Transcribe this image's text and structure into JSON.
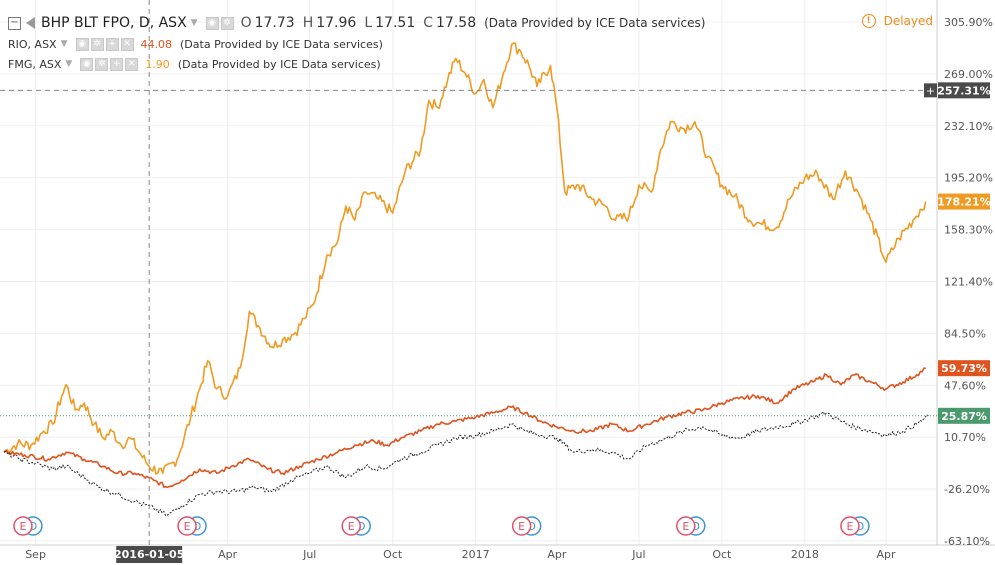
{
  "legend": {
    "main": {
      "symbol": "BHP BLT FPO, D, ASX",
      "o_label": "O",
      "o_value": "17.73",
      "h_label": "H",
      "h_value": "17.96",
      "l_label": "L",
      "l_value": "17.51",
      "c_label": "C",
      "c_value": "17.58",
      "provider": "(Data Provided by ICE Data services)"
    },
    "rio": {
      "symbol": "RIO, ASX",
      "value": "44.08",
      "provider": "(Data Provided by ICE Data services)"
    },
    "fmg": {
      "symbol": "FMG, ASX",
      "value": "1.90",
      "provider": "(Data Provided by ICE Data services)"
    }
  },
  "status": {
    "delayed_label": "Delayed"
  },
  "colors": {
    "bhp": "#222222",
    "rio": "#e0531f",
    "fmg": "#f09a22",
    "bhp_label_bg": "#4a9a6e",
    "crosshair_label_bg": "#4a4a4a"
  },
  "chart_data": {
    "type": "line",
    "y_scale": "percent",
    "ylim": [
      -66,
      318
    ],
    "xlim": [
      "2015-07-28",
      "2018-05-22"
    ],
    "x_ticks": [
      {
        "date": "2015-09-01",
        "label": "Sep"
      },
      {
        "date": "2016-04-01",
        "label": "Apr"
      },
      {
        "date": "2016-07-01",
        "label": "Jul"
      },
      {
        "date": "2016-10-01",
        "label": "Oct"
      },
      {
        "date": "2017-01-01",
        "label": "2017"
      },
      {
        "date": "2017-04-01",
        "label": "Apr"
      },
      {
        "date": "2017-07-01",
        "label": "Jul"
      },
      {
        "date": "2017-10-01",
        "label": "Oct"
      },
      {
        "date": "2018-01-01",
        "label": "2018"
      },
      {
        "date": "2018-04-01",
        "label": "Apr"
      }
    ],
    "y_ticks": [
      "305.90%",
      "269.00%",
      "232.10%",
      "195.20%",
      "158.30%",
      "121.40%",
      "84.50%",
      "47.60%",
      "10.70%",
      "-26.20%",
      "-63.10%"
    ],
    "y_tick_values": [
      305.9,
      269.0,
      232.1,
      195.2,
      158.3,
      121.4,
      84.5,
      47.6,
      10.7,
      -26.2,
      -63.1
    ],
    "crosshair": {
      "date": "2016-01-05",
      "label": "2016-01-05",
      "value": 257.31,
      "value_label": "257.31%"
    },
    "last_labels": [
      {
        "series": "FMG, ASX",
        "label": "178.21%",
        "value": 178.21,
        "color": "#f09a22"
      },
      {
        "series": "RIO, ASX",
        "label": "59.73%",
        "value": 59.73,
        "color": "#e0531f"
      },
      {
        "series": "BHP BLT FPO",
        "label": "25.87%",
        "value": 25.87,
        "color": "#4a9a6e"
      }
    ],
    "earnings_markers": [
      {
        "date": "2015-08-18",
        "letters": [
          "E",
          "D"
        ]
      },
      {
        "date": "2016-02-16",
        "letters": [
          "E",
          "D"
        ]
      },
      {
        "date": "2016-08-16",
        "letters": [
          "E",
          "D"
        ]
      },
      {
        "date": "2017-02-21",
        "letters": [
          "E",
          "D"
        ]
      },
      {
        "date": "2017-08-22",
        "letters": [
          "E",
          "D"
        ]
      },
      {
        "date": "2018-02-20",
        "letters": [
          "E",
          "D"
        ]
      }
    ],
    "series": [
      {
        "name": "FMG, ASX",
        "color": "#f09a22",
        "style": "solid",
        "points": [
          [
            "2015-07-28",
            0
          ],
          [
            "2015-08-12",
            6
          ],
          [
            "2015-08-27",
            5
          ],
          [
            "2015-09-10",
            15
          ],
          [
            "2015-09-20",
            20
          ],
          [
            "2015-09-30",
            40
          ],
          [
            "2015-10-05",
            48
          ],
          [
            "2015-10-15",
            30
          ],
          [
            "2015-10-25",
            35
          ],
          [
            "2015-11-05",
            20
          ],
          [
            "2015-11-15",
            10
          ],
          [
            "2015-11-25",
            15
          ],
          [
            "2015-12-05",
            5
          ],
          [
            "2015-12-15",
            10
          ],
          [
            "2015-12-25",
            0
          ],
          [
            "2016-01-05",
            -10
          ],
          [
            "2016-01-20",
            -15
          ],
          [
            "2016-02-05",
            -5
          ],
          [
            "2016-02-20",
            25
          ],
          [
            "2016-03-01",
            45
          ],
          [
            "2016-03-10",
            65
          ],
          [
            "2016-03-20",
            45
          ],
          [
            "2016-04-01",
            40
          ],
          [
            "2016-04-15",
            60
          ],
          [
            "2016-04-25",
            100
          ],
          [
            "2016-05-05",
            90
          ],
          [
            "2016-05-20",
            75
          ],
          [
            "2016-06-01",
            80
          ],
          [
            "2016-06-15",
            85
          ],
          [
            "2016-06-25",
            95
          ],
          [
            "2016-07-05",
            105
          ],
          [
            "2016-07-20",
            140
          ],
          [
            "2016-08-01",
            150
          ],
          [
            "2016-08-10",
            175
          ],
          [
            "2016-08-20",
            165
          ],
          [
            "2016-09-01",
            185
          ],
          [
            "2016-09-15",
            180
          ],
          [
            "2016-10-01",
            170
          ],
          [
            "2016-10-15",
            200
          ],
          [
            "2016-11-01",
            215
          ],
          [
            "2016-11-10",
            250
          ],
          [
            "2016-11-20",
            245
          ],
          [
            "2016-12-01",
            265
          ],
          [
            "2016-12-10",
            280
          ],
          [
            "2016-12-20",
            270
          ],
          [
            "2017-01-01",
            255
          ],
          [
            "2017-01-10",
            265
          ],
          [
            "2017-01-20",
            245
          ],
          [
            "2017-02-01",
            270
          ],
          [
            "2017-02-10",
            290
          ],
          [
            "2017-02-20",
            285
          ],
          [
            "2017-03-01",
            275
          ],
          [
            "2017-03-10",
            260
          ],
          [
            "2017-03-25",
            275
          ],
          [
            "2017-04-01",
            245
          ],
          [
            "2017-04-10",
            185
          ],
          [
            "2017-04-25",
            190
          ],
          [
            "2017-05-10",
            180
          ],
          [
            "2017-05-25",
            175
          ],
          [
            "2017-06-05",
            165
          ],
          [
            "2017-06-20",
            168
          ],
          [
            "2017-07-01",
            190
          ],
          [
            "2017-07-15",
            185
          ],
          [
            "2017-07-25",
            215
          ],
          [
            "2017-08-05",
            235
          ],
          [
            "2017-08-20",
            230
          ],
          [
            "2017-09-01",
            235
          ],
          [
            "2017-09-15",
            210
          ],
          [
            "2017-10-01",
            190
          ],
          [
            "2017-10-15",
            182
          ],
          [
            "2017-11-01",
            165
          ],
          [
            "2017-11-15",
            162
          ],
          [
            "2017-12-01",
            160
          ],
          [
            "2017-12-15",
            180
          ],
          [
            "2018-01-01",
            195
          ],
          [
            "2018-01-15",
            198
          ],
          [
            "2018-02-01",
            180
          ],
          [
            "2018-02-15",
            200
          ],
          [
            "2018-03-01",
            185
          ],
          [
            "2018-03-15",
            165
          ],
          [
            "2018-04-01",
            135
          ],
          [
            "2018-04-15",
            152
          ],
          [
            "2018-05-01",
            165
          ],
          [
            "2018-05-15",
            178.21
          ]
        ]
      },
      {
        "name": "RIO, ASX",
        "color": "#e0531f",
        "style": "solid",
        "points": [
          [
            "2015-07-28",
            0
          ],
          [
            "2015-08-20",
            -2
          ],
          [
            "2015-09-15",
            -5
          ],
          [
            "2015-10-05",
            0
          ],
          [
            "2015-10-25",
            -5
          ],
          [
            "2015-11-15",
            -10
          ],
          [
            "2015-12-01",
            -15
          ],
          [
            "2015-12-20",
            -15
          ],
          [
            "2016-01-10",
            -20
          ],
          [
            "2016-01-25",
            -25
          ],
          [
            "2016-02-10",
            -20
          ],
          [
            "2016-03-01",
            -12
          ],
          [
            "2016-03-20",
            -15
          ],
          [
            "2016-04-05",
            -10
          ],
          [
            "2016-04-25",
            -5
          ],
          [
            "2016-05-15",
            -12
          ],
          [
            "2016-06-01",
            -15
          ],
          [
            "2016-06-20",
            -10
          ],
          [
            "2016-07-10",
            -5
          ],
          [
            "2016-08-01",
            0
          ],
          [
            "2016-08-20",
            5
          ],
          [
            "2016-09-10",
            8
          ],
          [
            "2016-09-25",
            5
          ],
          [
            "2016-10-10",
            10
          ],
          [
            "2016-11-01",
            15
          ],
          [
            "2016-11-20",
            20
          ],
          [
            "2016-12-10",
            22
          ],
          [
            "2017-01-01",
            25
          ],
          [
            "2017-01-20",
            28
          ],
          [
            "2017-02-10",
            32
          ],
          [
            "2017-02-25",
            28
          ],
          [
            "2017-03-15",
            22
          ],
          [
            "2017-04-01",
            18
          ],
          [
            "2017-04-20",
            15
          ],
          [
            "2017-05-10",
            15
          ],
          [
            "2017-06-01",
            20
          ],
          [
            "2017-06-20",
            15
          ],
          [
            "2017-07-10",
            20
          ],
          [
            "2017-08-01",
            25
          ],
          [
            "2017-08-20",
            28
          ],
          [
            "2017-09-10",
            30
          ],
          [
            "2017-10-01",
            35
          ],
          [
            "2017-10-20",
            38
          ],
          [
            "2017-11-10",
            40
          ],
          [
            "2017-12-01",
            35
          ],
          [
            "2017-12-20",
            45
          ],
          [
            "2018-01-10",
            50
          ],
          [
            "2018-01-25",
            55
          ],
          [
            "2018-02-10",
            48
          ],
          [
            "2018-02-25",
            55
          ],
          [
            "2018-03-15",
            50
          ],
          [
            "2018-04-01",
            45
          ],
          [
            "2018-04-20",
            50
          ],
          [
            "2018-05-05",
            55
          ],
          [
            "2018-05-15",
            59.73
          ]
        ]
      },
      {
        "name": "BHP BLT FPO",
        "color": "#222222",
        "style": "dotted",
        "points": [
          [
            "2015-07-28",
            0
          ],
          [
            "2015-08-15",
            -5
          ],
          [
            "2015-09-01",
            -8
          ],
          [
            "2015-09-20",
            -12
          ],
          [
            "2015-10-05",
            -10
          ],
          [
            "2015-10-25",
            -18
          ],
          [
            "2015-11-10",
            -25
          ],
          [
            "2015-12-01",
            -30
          ],
          [
            "2015-12-20",
            -35
          ],
          [
            "2016-01-10",
            -40
          ],
          [
            "2016-01-25",
            -45
          ],
          [
            "2016-02-10",
            -38
          ],
          [
            "2016-03-01",
            -30
          ],
          [
            "2016-03-20",
            -28
          ],
          [
            "2016-04-10",
            -28
          ],
          [
            "2016-05-01",
            -25
          ],
          [
            "2016-05-20",
            -28
          ],
          [
            "2016-06-10",
            -20
          ],
          [
            "2016-07-01",
            -15
          ],
          [
            "2016-07-20",
            -10
          ],
          [
            "2016-08-10",
            -18
          ],
          [
            "2016-09-01",
            -10
          ],
          [
            "2016-09-20",
            -12
          ],
          [
            "2016-10-10",
            -5
          ],
          [
            "2016-11-01",
            0
          ],
          [
            "2016-11-20",
            5
          ],
          [
            "2016-12-10",
            10
          ],
          [
            "2017-01-01",
            12
          ],
          [
            "2017-01-20",
            15
          ],
          [
            "2017-02-10",
            20
          ],
          [
            "2017-02-25",
            15
          ],
          [
            "2017-03-15",
            12
          ],
          [
            "2017-04-01",
            10
          ],
          [
            "2017-04-20",
            0
          ],
          [
            "2017-05-10",
            2
          ],
          [
            "2017-06-01",
            0
          ],
          [
            "2017-06-20",
            -5
          ],
          [
            "2017-07-10",
            5
          ],
          [
            "2017-08-01",
            10
          ],
          [
            "2017-08-20",
            15
          ],
          [
            "2017-09-10",
            18
          ],
          [
            "2017-10-01",
            12
          ],
          [
            "2017-10-20",
            10
          ],
          [
            "2017-11-10",
            15
          ],
          [
            "2017-12-01",
            18
          ],
          [
            "2017-12-20",
            20
          ],
          [
            "2018-01-10",
            25
          ],
          [
            "2018-01-25",
            28
          ],
          [
            "2018-02-10",
            22
          ],
          [
            "2018-02-25",
            18
          ],
          [
            "2018-03-15",
            15
          ],
          [
            "2018-04-01",
            12
          ],
          [
            "2018-04-20",
            15
          ],
          [
            "2018-05-05",
            20
          ],
          [
            "2018-05-18",
            25.87
          ]
        ]
      }
    ]
  }
}
